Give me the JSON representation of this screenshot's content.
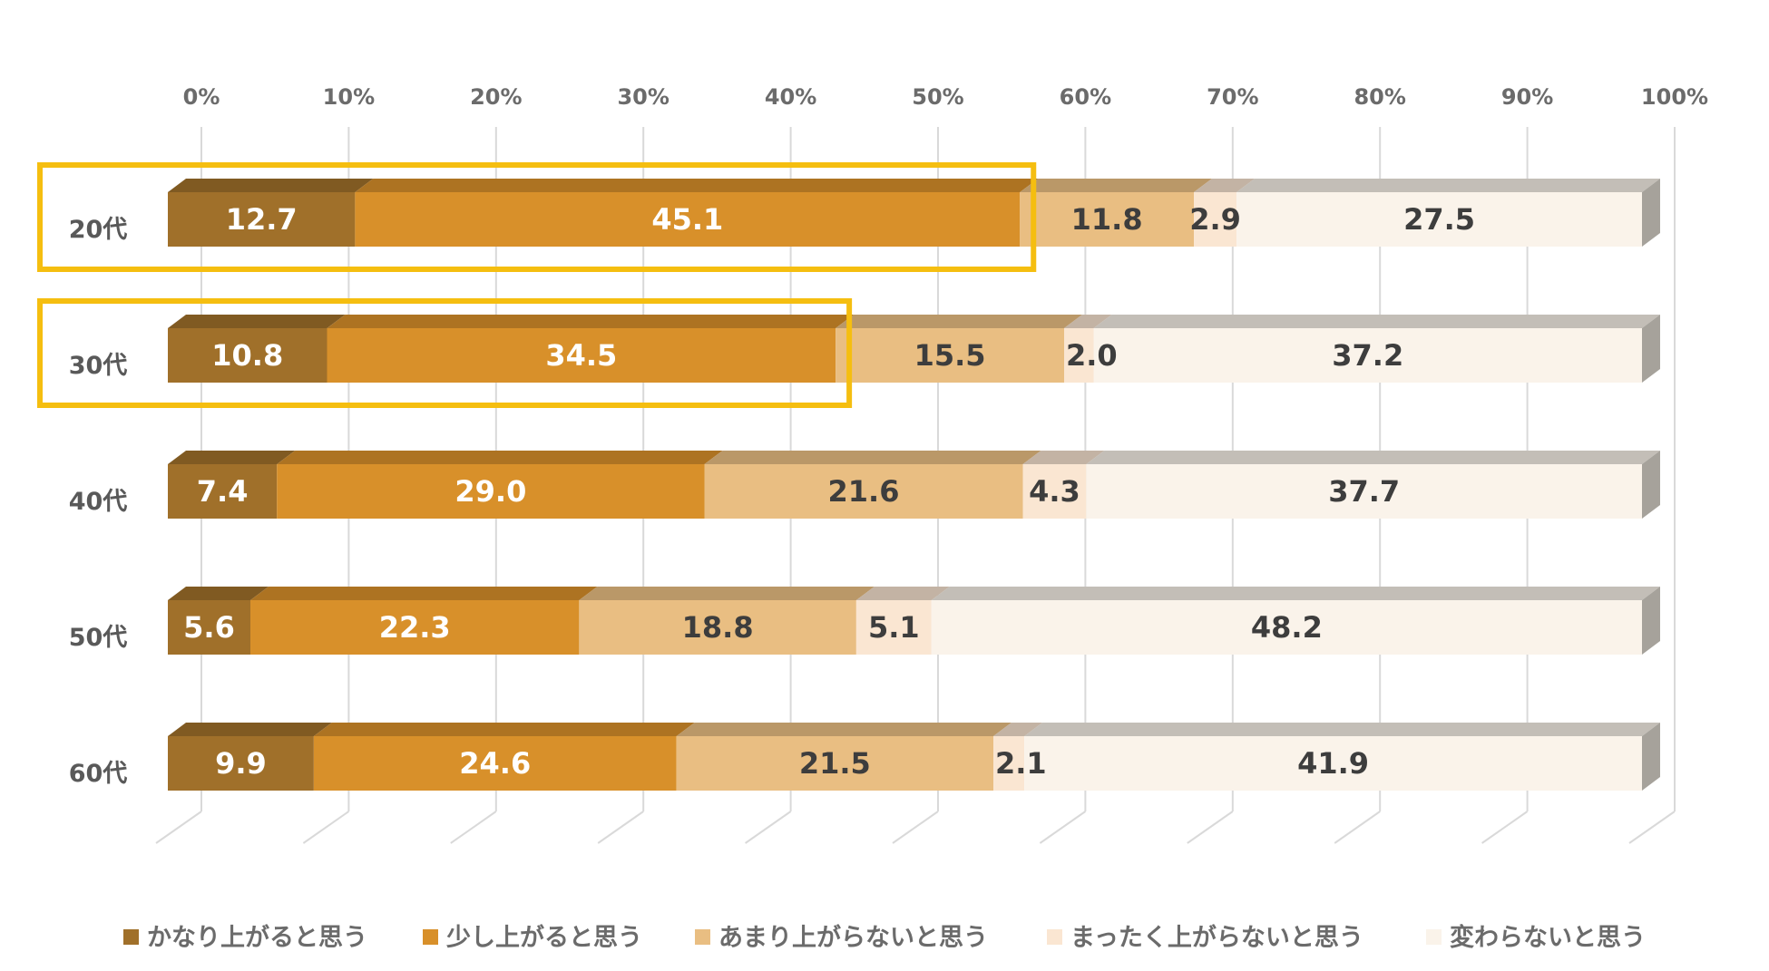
{
  "chart_data": {
    "type": "bar",
    "orientation": "horizontal",
    "stacked": "100%",
    "categories": [
      "20代",
      "30代",
      "40代",
      "50代",
      "60代"
    ],
    "x_ticks": [
      "0%",
      "10%",
      "20%",
      "30%",
      "40%",
      "50%",
      "60%",
      "70%",
      "80%",
      "90%",
      "100%"
    ],
    "xlim": [
      0,
      100
    ],
    "grid": true,
    "legend_position": "bottom",
    "series": [
      {
        "name": "かなり上がると思う",
        "color": "#A0702A",
        "label_color": "#ffffff",
        "values": [
          12.7,
          10.8,
          7.4,
          5.6,
          9.9
        ]
      },
      {
        "name": "少し上がると思う",
        "color": "#D8902A",
        "label_color": "#ffffff",
        "values": [
          45.1,
          34.5,
          29.0,
          22.3,
          24.6
        ]
      },
      {
        "name": "あまり上がらないと思う",
        "color": "#E9BE82",
        "label_color": "#3d3d3d",
        "values": [
          11.8,
          15.5,
          21.6,
          18.8,
          21.5
        ]
      },
      {
        "name": "まったく上がらないと思う",
        "color": "#FAE6D2",
        "label_color": "#3d3d3d",
        "values": [
          2.9,
          2.0,
          4.3,
          5.1,
          2.1
        ]
      },
      {
        "name": "変わらないと思う",
        "color": "#FAF3EA",
        "label_color": "#3d3d3d",
        "values": [
          27.5,
          37.2,
          37.7,
          48.2,
          41.9
        ]
      }
    ],
    "highlights": [
      {
        "category": "20代",
        "series_span": 2,
        "color": "#F5BE10"
      },
      {
        "category": "30代",
        "series_span": 2,
        "color": "#F5BE10"
      }
    ]
  }
}
